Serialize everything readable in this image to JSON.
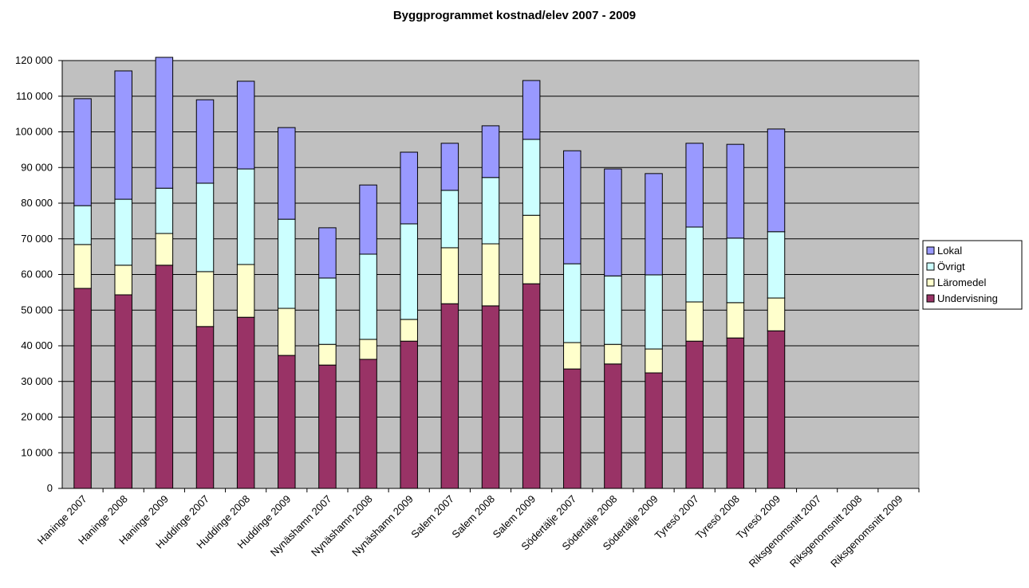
{
  "chart_data": {
    "type": "stacked_bar",
    "title": "Byggprogrammet kostnad/elev 2007 - 2009",
    "categories": [
      "Haninge 2007",
      "Haninge 2008",
      "Haninge 2009",
      "Huddinge 2007",
      "Huddinge 2008",
      "Huddinge 2009",
      "Nynäshamn 2007",
      "Nynäshamn 2008",
      "Nynäshamn 2009",
      "Salem 2007",
      "Salem 2008",
      "Salem 2009",
      "Södertälje 2007",
      "Södertälje 2008",
      "Södertälje 2009",
      "Tyresö 2007",
      "Tyresö 2008",
      "Tyresö 2009",
      "Riksgenomsnitt 2007",
      "Riksgenomsnitt 2008",
      "Riksgenomsnitt 2009"
    ],
    "series": [
      {
        "name": "Undervisning",
        "color": "#993366",
        "values": [
          56100,
          54300,
          62600,
          45400,
          48000,
          37300,
          34600,
          36200,
          41300,
          51800,
          51200,
          57400,
          33500,
          34900,
          32400,
          41300,
          42200,
          44200,
          null,
          null,
          null
        ]
      },
      {
        "name": "Läromedel",
        "color": "#ffffcc",
        "values": [
          12300,
          8300,
          8900,
          15400,
          14800,
          13200,
          5800,
          5600,
          6100,
          15700,
          17400,
          19200,
          7400,
          5500,
          6700,
          11000,
          9900,
          9200,
          null,
          null,
          null
        ]
      },
      {
        "name": "Övrigt",
        "color": "#ccffff",
        "values": [
          10900,
          18500,
          12700,
          24800,
          26800,
          25000,
          18600,
          23900,
          26800,
          16100,
          18600,
          21300,
          22100,
          19200,
          20800,
          21000,
          18100,
          18600,
          null,
          null,
          null
        ]
      },
      {
        "name": "Lokal",
        "color": "#9999ff",
        "values": [
          30000,
          36000,
          36700,
          23400,
          24600,
          25700,
          14100,
          19400,
          20100,
          13200,
          14500,
          16500,
          31700,
          30000,
          28400,
          23500,
          26300,
          28800,
          null,
          null,
          null
        ]
      }
    ],
    "ylim": [
      0,
      120000
    ],
    "yticks": [
      0,
      {
        "value": 10000,
        "label": "10 000"
      },
      {
        "value": 20000,
        "label": "20 000"
      },
      {
        "value": 30000,
        "label": "30 000"
      },
      {
        "value": 40000,
        "label": "40 000"
      },
      {
        "value": 50000,
        "label": "50 000"
      },
      {
        "value": 60000,
        "label": "60 000"
      },
      {
        "value": 70000,
        "label": "70 000"
      },
      {
        "value": 80000,
        "label": "80 000"
      },
      {
        "value": 90000,
        "label": "90 000"
      },
      {
        "value": 100000,
        "label": "100 000"
      },
      {
        "value": 110000,
        "label": "110 000"
      },
      {
        "value": 120000,
        "label": "120 000"
      }
    ],
    "grid": true,
    "legend": "right",
    "plot_background": "#c0c0c0"
  }
}
